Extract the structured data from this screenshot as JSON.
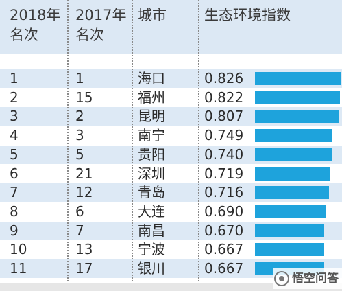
{
  "chart_data": {
    "type": "table",
    "title": "",
    "columns": [
      "2018年\n名次",
      "2017年\n名次",
      "城市",
      "生态环境指数"
    ],
    "headers": {
      "rank_2018": [
        "2018年",
        "名次"
      ],
      "rank_2017": [
        "2017年",
        "名次"
      ],
      "city": "城市",
      "index": "生态环境指数"
    },
    "rows": [
      {
        "rank_2018": "1",
        "rank_2017": "1",
        "city": "海口",
        "index": "0.826",
        "value": 0.826
      },
      {
        "rank_2018": "2",
        "rank_2017": "15",
        "city": "福州",
        "index": "0.822",
        "value": 0.822
      },
      {
        "rank_2018": "3",
        "rank_2017": "2",
        "city": "昆明",
        "index": "0.807",
        "value": 0.807
      },
      {
        "rank_2018": "4",
        "rank_2017": "3",
        "city": "南宁",
        "index": "0.749",
        "value": 0.749
      },
      {
        "rank_2018": "5",
        "rank_2017": "5",
        "city": "贵阳",
        "index": "0.740",
        "value": 0.74
      },
      {
        "rank_2018": "6",
        "rank_2017": "21",
        "city": "深圳",
        "index": "0.719",
        "value": 0.719
      },
      {
        "rank_2018": "7",
        "rank_2017": "12",
        "city": "青岛",
        "index": "0.716",
        "value": 0.716
      },
      {
        "rank_2018": "8",
        "rank_2017": "6",
        "city": "大连",
        "index": "0.690",
        "value": 0.69
      },
      {
        "rank_2018": "9",
        "rank_2017": "7",
        "city": "南昌",
        "index": "0.670",
        "value": 0.67
      },
      {
        "rank_2018": "10",
        "rank_2017": "13",
        "city": "宁波",
        "index": "0.667",
        "value": 0.667
      },
      {
        "rank_2018": "11",
        "rank_2017": "17",
        "city": "银川",
        "index": "0.667",
        "value": 0.667
      }
    ],
    "bar_color": "#1ea3dc",
    "header_bg": "#dce8f4",
    "alt_row_bg": "#dde9f5"
  },
  "watermark": {
    "text": "悟空问答",
    "icon": "wukong-logo-icon"
  }
}
